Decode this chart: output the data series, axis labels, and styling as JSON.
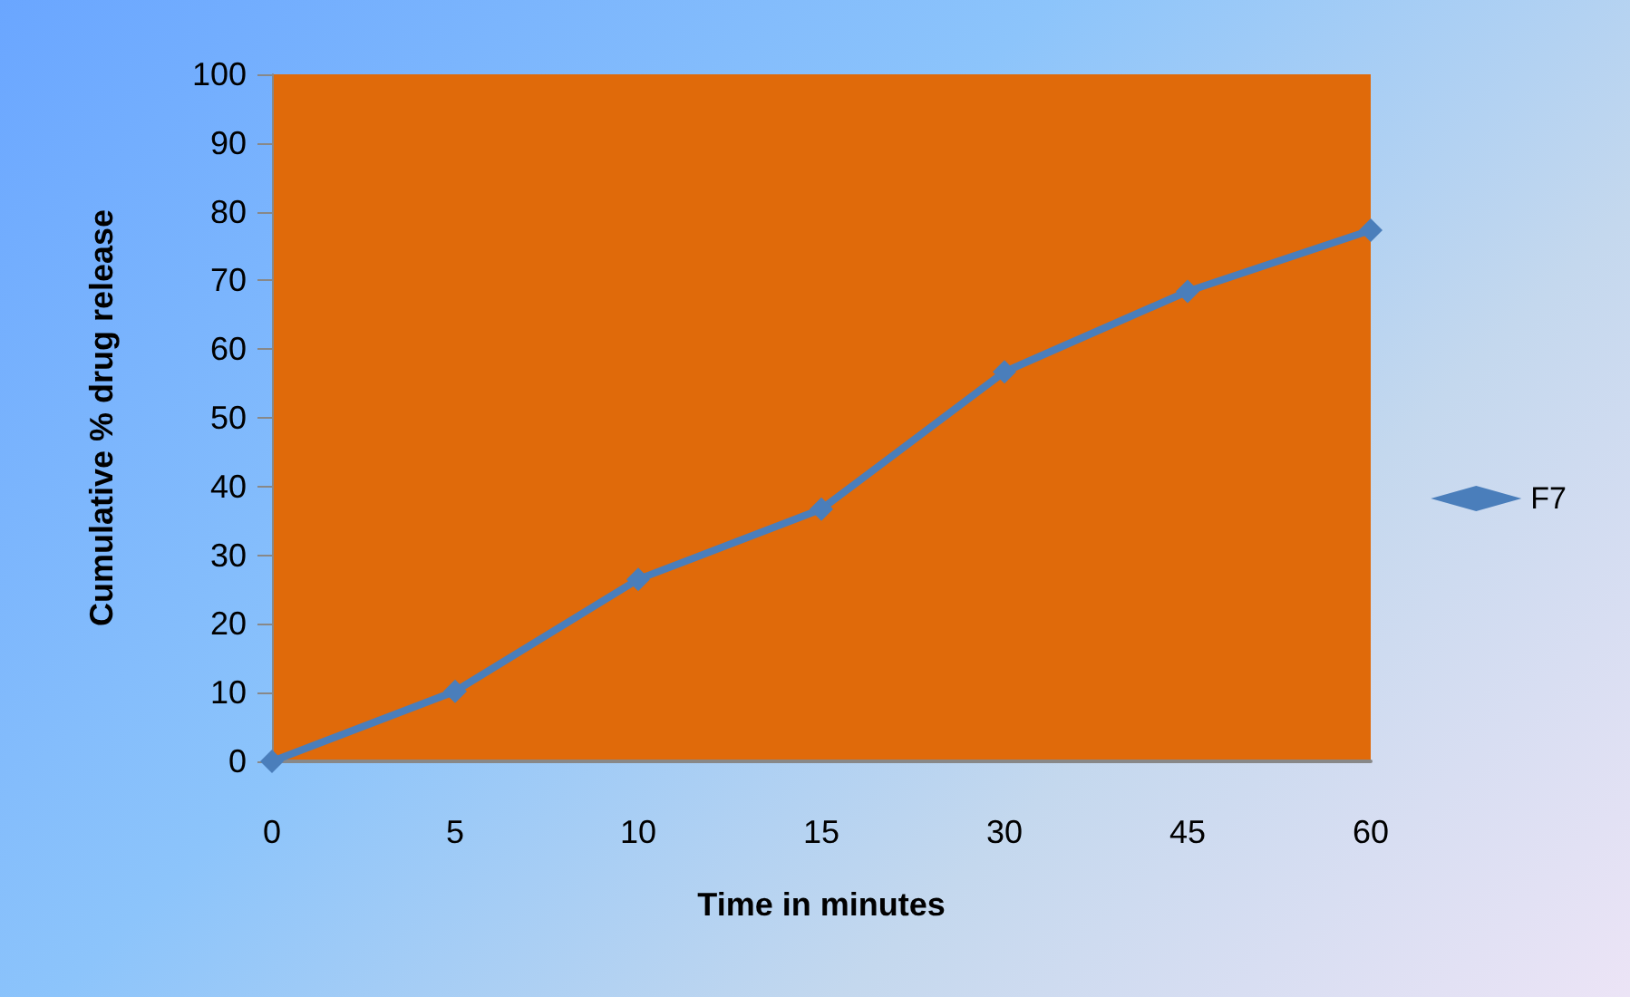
{
  "chart_data": {
    "type": "line",
    "xlabel": "Time in minutes",
    "ylabel": "Cumulative % drug release",
    "categories": [
      "0",
      "5",
      "10",
      "15",
      "30",
      "45",
      "60"
    ],
    "series": [
      {
        "name": "F7",
        "color": "#4a7ebb",
        "values": [
          0,
          10.2,
          26.5,
          36.7,
          56.7,
          68.4,
          77.3
        ]
      }
    ],
    "ylim": [
      0,
      100
    ],
    "yticks": [
      0,
      10,
      20,
      30,
      40,
      50,
      60,
      70,
      80,
      90,
      100
    ],
    "grid": false,
    "legend": "right",
    "marker": "diamond",
    "line_style": "solid"
  }
}
